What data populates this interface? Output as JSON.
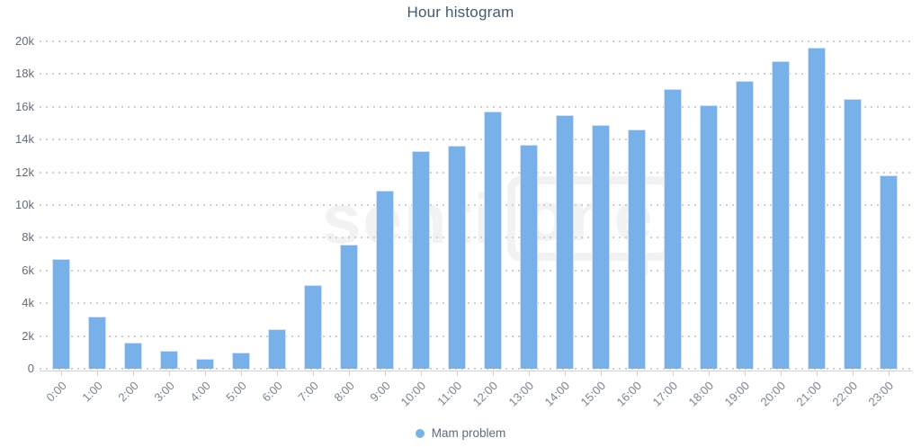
{
  "title": "Hour histogram",
  "legend": {
    "label": "Mam problem"
  },
  "watermark": {
    "left_text": "senti",
    "boxed_text": "one"
  },
  "colors": {
    "bar": "#78b1e9",
    "bar_border": "#cfe3f8",
    "title_text": "#44586e",
    "axis_label": "#6f7887",
    "grid_dot": "#cfcfcf",
    "axis_line": "#ccd2da",
    "legend_text": "#5d6b7e",
    "watermark": "#f2f2f2"
  },
  "chart_data": {
    "type": "bar",
    "title": "Hour histogram",
    "categories": [
      "0:00",
      "1:00",
      "2:00",
      "3:00",
      "4:00",
      "5:00",
      "6:00",
      "7:00",
      "8:00",
      "9:00",
      "10:00",
      "11:00",
      "12:00",
      "13:00",
      "14:00",
      "15:00",
      "16:00",
      "17:00",
      "18:00",
      "19:00",
      "20:00",
      "21:00",
      "22:00",
      "23:00"
    ],
    "series": [
      {
        "name": "Mam problem",
        "values": [
          6700,
          3200,
          1600,
          1100,
          600,
          1000,
          2400,
          5100,
          7600,
          10900,
          13300,
          13600,
          15700,
          13700,
          15500,
          14900,
          14600,
          17100,
          16100,
          17600,
          18800,
          19600,
          16500,
          11800
        ]
      }
    ],
    "xlabel": "",
    "ylabel": "",
    "ylim": [
      0,
      20000
    ],
    "ytick_values": [
      0,
      2000,
      4000,
      6000,
      8000,
      10000,
      12000,
      14000,
      16000,
      18000,
      20000
    ],
    "ytick_labels": [
      "0",
      "2k",
      "4k",
      "6k",
      "8k",
      "10k",
      "12k",
      "14k",
      "16k",
      "18k",
      "20k"
    ],
    "grid": "horizontal-dotted",
    "x_tick_marks": "at-category-centers",
    "x_label_rotation": -45,
    "legend_position": "bottom-center",
    "bar_color": "#78b1e9"
  }
}
